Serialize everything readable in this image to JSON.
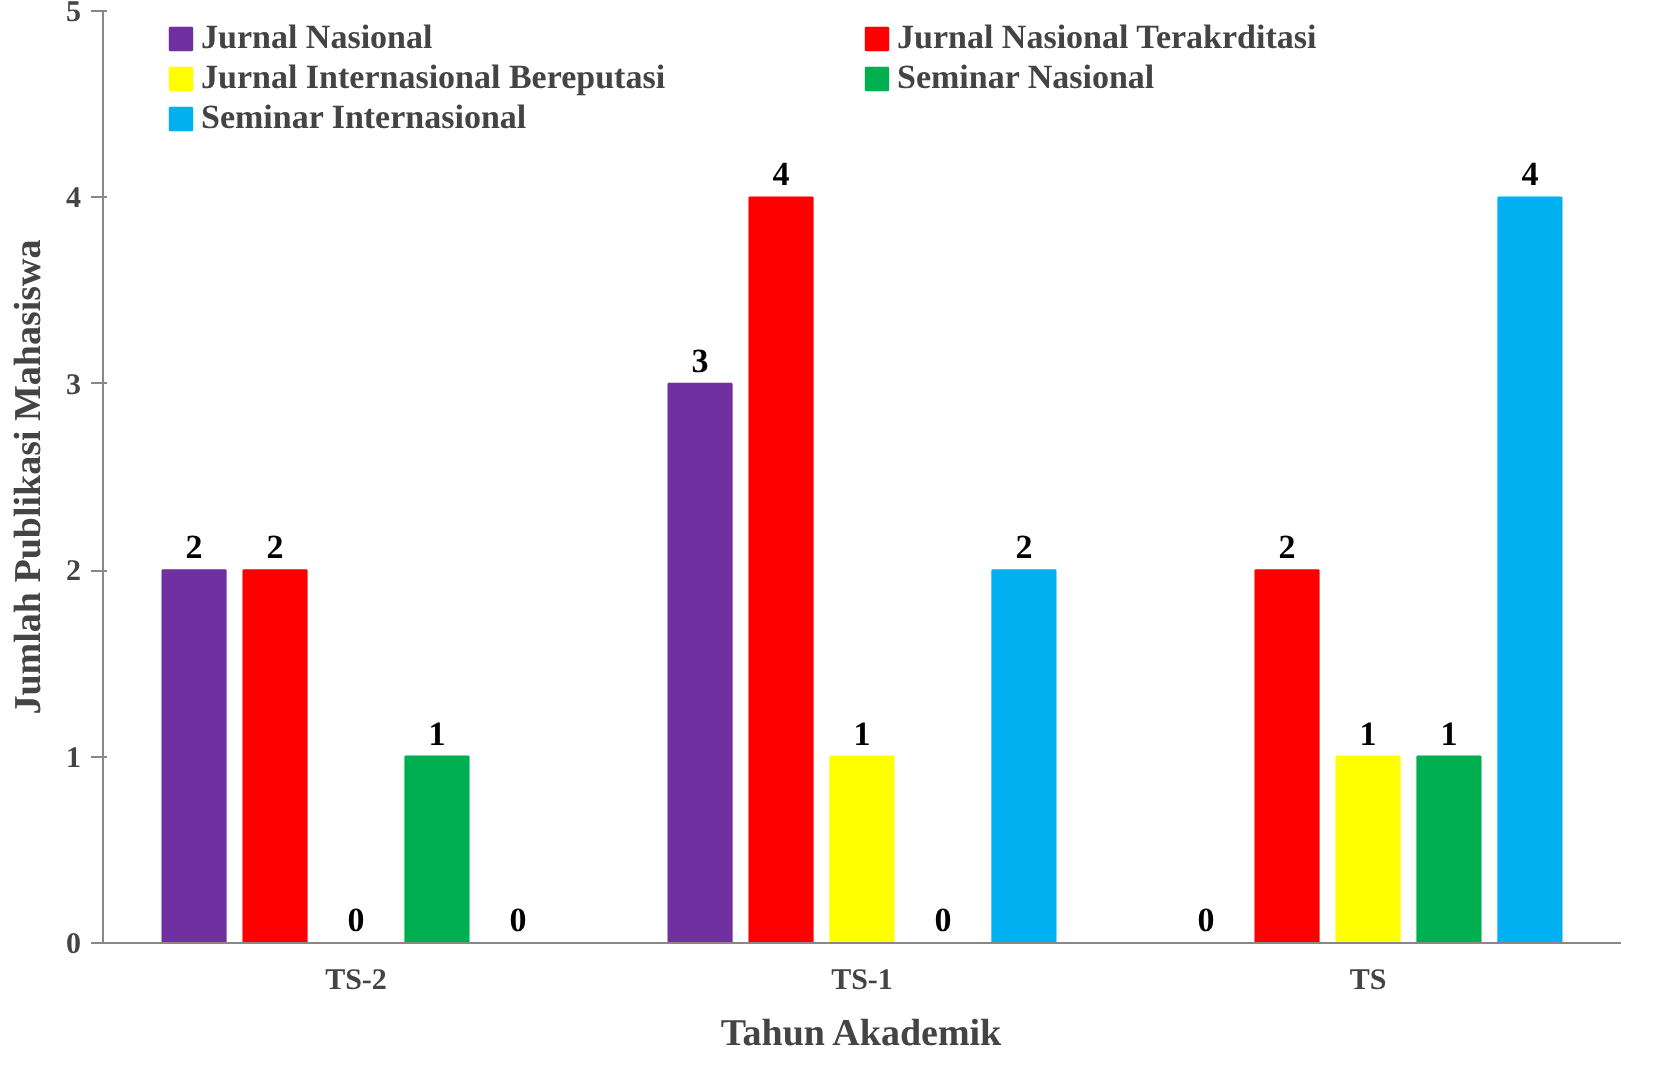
{
  "chart_data": {
    "type": "bar",
    "xlabel": "Tahun Akademik",
    "ylabel": "Jumlah Publikasi Mahasiswa",
    "categories": [
      "TS-2",
      "TS-1",
      "TS"
    ],
    "series": [
      {
        "name": "Jurnal Nasional",
        "color": "#7030a0",
        "values": [
          2,
          3,
          0
        ]
      },
      {
        "name": "Jurnal Nasional Terakrditasi",
        "color": "#ff0000",
        "values": [
          2,
          4,
          2
        ]
      },
      {
        "name": "Jurnal Internasional Bereputasi",
        "color": "#ffff00",
        "values": [
          0,
          1,
          1
        ]
      },
      {
        "name": "Seminar Nasional",
        "color": "#00b050",
        "values": [
          1,
          0,
          1
        ]
      },
      {
        "name": "Seminar Internasional",
        "color": "#00b0f0",
        "values": [
          0,
          2,
          4
        ]
      }
    ],
    "ylim": [
      0,
      5
    ],
    "yticks": [
      0,
      1,
      2,
      3,
      4,
      5
    ],
    "data_labels": true,
    "legend": "top",
    "grid": false
  }
}
